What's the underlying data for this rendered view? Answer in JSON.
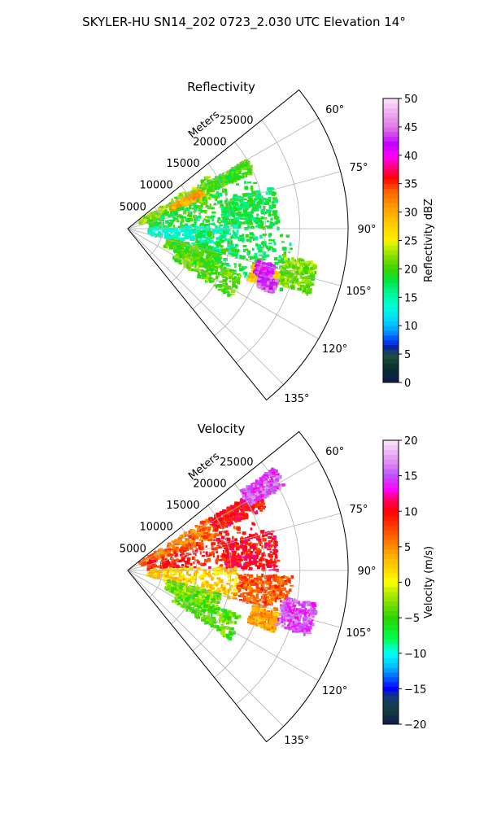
{
  "figure_title": "SKYLER-HU  SN14_202  0723_2.030 UTC Elevation 14°",
  "chart_data": [
    {
      "type": "heatmap",
      "title": "Reflectivity",
      "projection": "polar sector",
      "radial_axis_label": "Meters",
      "radial_ticks": [
        5000,
        10000,
        15000,
        20000,
        25000
      ],
      "radial_tick_labels": [
        "5000",
        "10000",
        "15000",
        "20000",
        "25000"
      ],
      "rlim": [
        0,
        32000
      ],
      "theta_range_deg": [
        51,
        141
      ],
      "theta_ticks": [
        60,
        75,
        90,
        105,
        120,
        135
      ],
      "theta_tick_labels": [
        "60°",
        "75°",
        "90°",
        "105°",
        "120°",
        "135°"
      ],
      "grid": true,
      "colorbar": {
        "label": "Reflectivity dBZ",
        "range": [
          0,
          50
        ],
        "ticks": [
          0,
          5,
          10,
          15,
          20,
          25,
          30,
          35,
          40,
          45,
          50
        ],
        "tick_labels": [
          "0",
          "5",
          "10",
          "15",
          "20",
          "25",
          "30",
          "35",
          "40",
          "45",
          "50"
        ],
        "colormap": "pyart_NWSRef"
      },
      "echo_regions": [
        {
          "theta_deg": [
            57,
            70
          ],
          "r_m": [
            2000,
            14000
          ],
          "value": 22
        },
        {
          "theta_deg": [
            62,
            68
          ],
          "r_m": [
            7000,
            12000
          ],
          "value": 30
        },
        {
          "theta_deg": [
            60,
            66
          ],
          "r_m": [
            13000,
            20000
          ],
          "value": 20
        },
        {
          "theta_deg": [
            68,
            88
          ],
          "r_m": [
            3000,
            20000
          ],
          "value": 19
        },
        {
          "theta_deg": [
            74,
            90
          ],
          "r_m": [
            14000,
            22000
          ],
          "value": 18
        },
        {
          "theta_deg": [
            88,
            105
          ],
          "r_m": [
            3000,
            16000
          ],
          "value": 14
        },
        {
          "theta_deg": [
            92,
            112
          ],
          "r_m": [
            10000,
            24000
          ],
          "value": 18
        },
        {
          "theta_deg": [
            104,
            116
          ],
          "r_m": [
            6000,
            14000
          ],
          "value": 20
        },
        {
          "theta_deg": [
            112,
            124
          ],
          "r_m": [
            8000,
            18000
          ],
          "value": 21
        },
        {
          "theta_deg": [
            106,
            113
          ],
          "r_m": [
            19000,
            23000
          ],
          "value": 28
        },
        {
          "theta_deg": [
            100,
            110
          ],
          "r_m": [
            23000,
            28000
          ],
          "value": 22
        },
        {
          "theta_deg": [
            104,
            110
          ],
          "r_m": [
            19500,
            22000
          ],
          "value": 42
        },
        {
          "theta_deg": [
            109,
            114
          ],
          "r_m": [
            20500,
            23000
          ],
          "value": 44
        }
      ]
    },
    {
      "type": "heatmap",
      "title": "Velocity",
      "projection": "polar sector",
      "radial_axis_label": "Meters",
      "radial_ticks": [
        5000,
        10000,
        15000,
        20000,
        25000
      ],
      "radial_tick_labels": [
        "5000",
        "10000",
        "15000",
        "20000",
        "25000"
      ],
      "rlim": [
        0,
        32000
      ],
      "theta_range_deg": [
        51,
        141
      ],
      "theta_ticks": [
        60,
        75,
        90,
        105,
        120,
        135
      ],
      "theta_tick_labels": [
        "60°",
        "75°",
        "90°",
        "105°",
        "120°",
        "135°"
      ],
      "grid": true,
      "colorbar": {
        "label": "Velocity (m/s)",
        "range": [
          -20,
          20
        ],
        "ticks": [
          -20,
          -15,
          -10,
          -5,
          0,
          5,
          10,
          15,
          20
        ],
        "tick_labels": [
          "−20",
          "−15",
          "−10",
          "−5",
          "0",
          "5",
          "10",
          "15",
          "20"
        ],
        "colormap": "pyart_NWSVel"
      },
      "echo_regions": [
        {
          "theta_deg": [
            57,
            70
          ],
          "r_m": [
            2000,
            14000
          ],
          "value": 6
        },
        {
          "theta_deg": [
            58,
            66
          ],
          "r_m": [
            14000,
            22000
          ],
          "value": 10
        },
        {
          "theta_deg": [
            55,
            62
          ],
          "r_m": [
            20000,
            26000
          ],
          "value": 15
        },
        {
          "theta_deg": [
            68,
            88
          ],
          "r_m": [
            3000,
            20000
          ],
          "value": 9
        },
        {
          "theta_deg": [
            74,
            90
          ],
          "r_m": [
            14000,
            22000
          ],
          "value": 10
        },
        {
          "theta_deg": [
            88,
            105
          ],
          "r_m": [
            3000,
            16000
          ],
          "value": 2
        },
        {
          "theta_deg": [
            92,
            105
          ],
          "r_m": [
            16000,
            24000
          ],
          "value": 7
        },
        {
          "theta_deg": [
            104,
            116
          ],
          "r_m": [
            6000,
            14000
          ],
          "value": -3
        },
        {
          "theta_deg": [
            112,
            124
          ],
          "r_m": [
            8000,
            18000
          ],
          "value": -4
        },
        {
          "theta_deg": [
            106,
            113
          ],
          "r_m": [
            19000,
            23000
          ],
          "value": 4
        },
        {
          "theta_deg": [
            100,
            110
          ],
          "r_m": [
            23000,
            28000
          ],
          "value": 15
        }
      ]
    }
  ]
}
